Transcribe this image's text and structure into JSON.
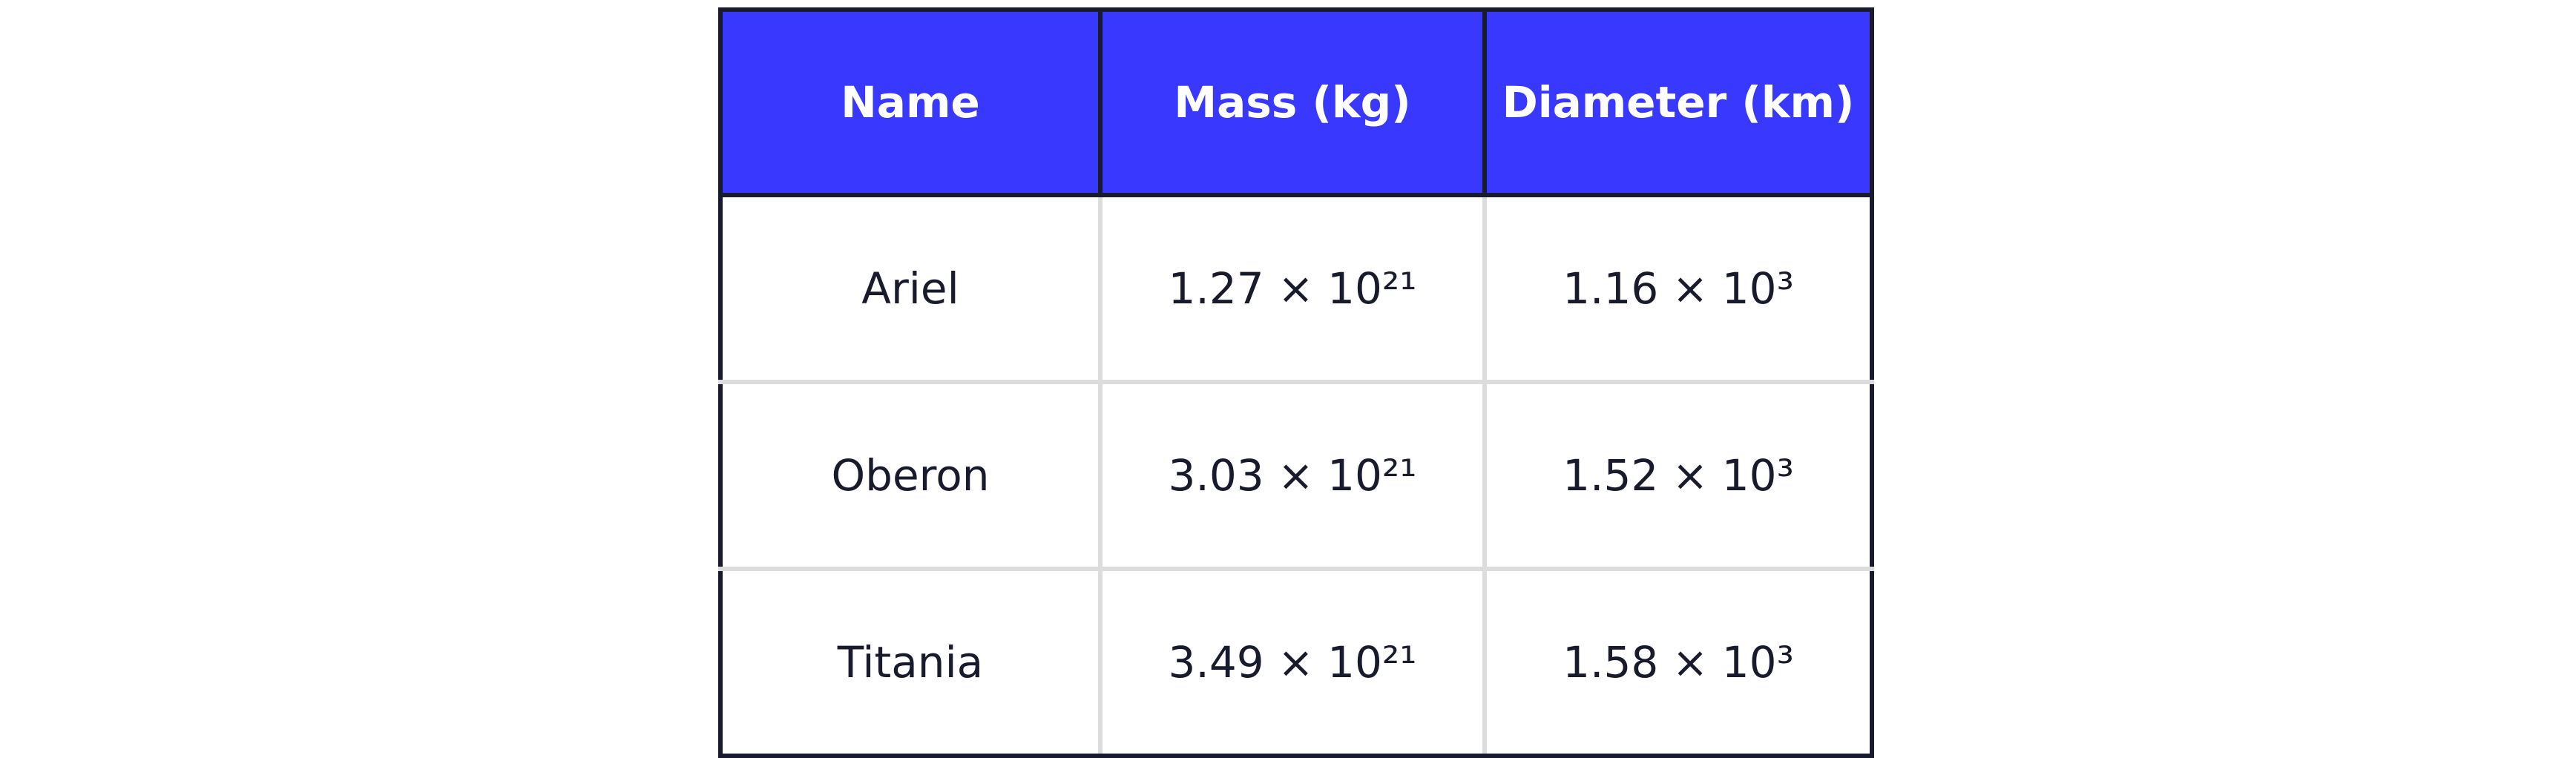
{
  "table": {
    "headers": [
      "Name",
      "Mass (kg)",
      "Diameter (km)"
    ],
    "rows": [
      [
        "Ariel",
        "1.27 × 10²¹",
        "1.16 × 10³"
      ],
      [
        "Oberon",
        "3.03 × 10²¹",
        "1.52 × 10³"
      ],
      [
        "Titania",
        "3.49 × 10²¹",
        "1.58 × 10³"
      ]
    ]
  }
}
